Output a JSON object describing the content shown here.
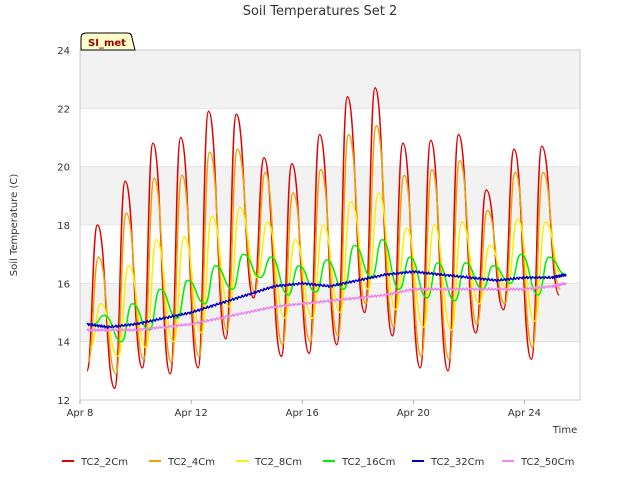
{
  "chart_data": {
    "type": "line",
    "title": "Soil Temperatures Set 2",
    "xlabel": "Time",
    "ylabel": "Soil Temperature (C)",
    "site_label": "SI_met",
    "xlim": [
      "2023-04-08",
      "2023-04-26"
    ],
    "ylim": [
      12,
      24
    ],
    "x_tick_labels": [
      "Apr 8",
      "Apr 12",
      "Apr 16",
      "Apr 20",
      "Apr 24"
    ],
    "y_tick_labels": [
      "12",
      "14",
      "16",
      "18",
      "20",
      "22",
      "24"
    ],
    "grid": true,
    "legend_position": "bottom",
    "series": [
      {
        "name": "TC2_2Cm",
        "color": "#e00000",
        "daily_min": [
          {
            "date": "2023-04-08 06:00",
            "y": 13.0
          },
          {
            "date": "2023-04-09 06:00",
            "y": 12.4
          },
          {
            "date": "2023-04-10 06:00",
            "y": 13.1
          },
          {
            "date": "2023-04-11 06:00",
            "y": 12.9
          },
          {
            "date": "2023-04-12 06:00",
            "y": 13.1
          },
          {
            "date": "2023-04-13 06:00",
            "y": 14.1
          },
          {
            "date": "2023-04-14 06:00",
            "y": 15.5
          },
          {
            "date": "2023-04-15 06:00",
            "y": 13.5
          },
          {
            "date": "2023-04-16 06:00",
            "y": 13.6
          },
          {
            "date": "2023-04-17 06:00",
            "y": 13.9
          },
          {
            "date": "2023-04-18 06:00",
            "y": 15.0
          },
          {
            "date": "2023-04-19 06:00",
            "y": 14.2
          },
          {
            "date": "2023-04-20 06:00",
            "y": 13.1
          },
          {
            "date": "2023-04-21 06:00",
            "y": 13.0
          },
          {
            "date": "2023-04-22 06:00",
            "y": 14.3
          },
          {
            "date": "2023-04-23 06:00",
            "y": 15.1
          },
          {
            "date": "2023-04-24 06:00",
            "y": 13.4
          },
          {
            "date": "2023-04-25 06:00",
            "y": 15.6
          }
        ],
        "daily_max": [
          {
            "date": "2023-04-08 15:00",
            "y": 18.0
          },
          {
            "date": "2023-04-09 15:00",
            "y": 19.5
          },
          {
            "date": "2023-04-10 15:00",
            "y": 20.8
          },
          {
            "date": "2023-04-11 15:00",
            "y": 21.0
          },
          {
            "date": "2023-04-12 15:00",
            "y": 21.9
          },
          {
            "date": "2023-04-13 15:00",
            "y": 21.8
          },
          {
            "date": "2023-04-14 15:00",
            "y": 20.3
          },
          {
            "date": "2023-04-15 15:00",
            "y": 20.1
          },
          {
            "date": "2023-04-16 15:00",
            "y": 21.1
          },
          {
            "date": "2023-04-17 15:00",
            "y": 22.4
          },
          {
            "date": "2023-04-18 15:00",
            "y": 22.7
          },
          {
            "date": "2023-04-19 15:00",
            "y": 20.8
          },
          {
            "date": "2023-04-20 15:00",
            "y": 20.9
          },
          {
            "date": "2023-04-21 15:00",
            "y": 21.1
          },
          {
            "date": "2023-04-22 15:00",
            "y": 19.2
          },
          {
            "date": "2023-04-23 15:00",
            "y": 20.6
          },
          {
            "date": "2023-04-24 15:00",
            "y": 20.7
          }
        ]
      },
      {
        "name": "TC2_4Cm",
        "color": "#f0a000",
        "daily_min": [
          {
            "date": "2023-04-08 07:00",
            "y": 13.3
          },
          {
            "date": "2023-04-09 07:00",
            "y": 12.9
          },
          {
            "date": "2023-04-10 07:00",
            "y": 13.4
          },
          {
            "date": "2023-04-11 07:00",
            "y": 13.3
          },
          {
            "date": "2023-04-12 07:00",
            "y": 13.5
          },
          {
            "date": "2023-04-13 07:00",
            "y": 14.4
          },
          {
            "date": "2023-04-14 07:00",
            "y": 15.7
          },
          {
            "date": "2023-04-15 07:00",
            "y": 13.9
          },
          {
            "date": "2023-04-16 07:00",
            "y": 14.0
          },
          {
            "date": "2023-04-17 07:00",
            "y": 14.2
          },
          {
            "date": "2023-04-18 07:00",
            "y": 15.3
          },
          {
            "date": "2023-04-19 07:00",
            "y": 14.5
          },
          {
            "date": "2023-04-20 07:00",
            "y": 13.5
          },
          {
            "date": "2023-04-21 07:00",
            "y": 13.4
          },
          {
            "date": "2023-04-22 07:00",
            "y": 14.6
          },
          {
            "date": "2023-04-23 07:00",
            "y": 15.3
          },
          {
            "date": "2023-04-24 07:00",
            "y": 13.8
          },
          {
            "date": "2023-04-25 07:00",
            "y": 15.8
          }
        ],
        "daily_max": [
          {
            "date": "2023-04-08 16:00",
            "y": 16.9
          },
          {
            "date": "2023-04-09 16:00",
            "y": 18.4
          },
          {
            "date": "2023-04-10 16:00",
            "y": 19.6
          },
          {
            "date": "2023-04-11 16:00",
            "y": 19.7
          },
          {
            "date": "2023-04-12 16:00",
            "y": 20.5
          },
          {
            "date": "2023-04-13 16:00",
            "y": 20.6
          },
          {
            "date": "2023-04-14 16:00",
            "y": 19.8
          },
          {
            "date": "2023-04-15 16:00",
            "y": 19.1
          },
          {
            "date": "2023-04-16 16:00",
            "y": 19.9
          },
          {
            "date": "2023-04-17 16:00",
            "y": 21.1
          },
          {
            "date": "2023-04-18 16:00",
            "y": 21.4
          },
          {
            "date": "2023-04-19 16:00",
            "y": 19.7
          },
          {
            "date": "2023-04-20 16:00",
            "y": 19.9
          },
          {
            "date": "2023-04-21 16:00",
            "y": 20.2
          },
          {
            "date": "2023-04-22 16:00",
            "y": 18.5
          },
          {
            "date": "2023-04-23 16:00",
            "y": 19.8
          },
          {
            "date": "2023-04-24 16:00",
            "y": 19.8
          }
        ]
      },
      {
        "name": "TC2_8Cm",
        "color": "#ffee00",
        "daily_min": [
          {
            "date": "2023-04-08 09:00",
            "y": 13.8
          },
          {
            "date": "2023-04-09 09:00",
            "y": 13.5
          },
          {
            "date": "2023-04-10 09:00",
            "y": 13.8
          },
          {
            "date": "2023-04-11 09:00",
            "y": 14.0
          },
          {
            "date": "2023-04-12 09:00",
            "y": 14.3
          },
          {
            "date": "2023-04-13 09:00",
            "y": 15.2
          },
          {
            "date": "2023-04-14 09:00",
            "y": 16.2
          },
          {
            "date": "2023-04-15 09:00",
            "y": 14.8
          },
          {
            "date": "2023-04-16 09:00",
            "y": 14.8
          },
          {
            "date": "2023-04-17 09:00",
            "y": 15.0
          },
          {
            "date": "2023-04-18 09:00",
            "y": 15.8
          },
          {
            "date": "2023-04-19 09:00",
            "y": 15.1
          },
          {
            "date": "2023-04-20 09:00",
            "y": 14.5
          },
          {
            "date": "2023-04-21 09:00",
            "y": 14.4
          },
          {
            "date": "2023-04-22 09:00",
            "y": 15.3
          },
          {
            "date": "2023-04-23 09:00",
            "y": 15.8
          },
          {
            "date": "2023-04-24 09:00",
            "y": 14.7
          },
          {
            "date": "2023-04-25 09:00",
            "y": 16.2
          }
        ],
        "daily_max": [
          {
            "date": "2023-04-08 18:00",
            "y": 15.3
          },
          {
            "date": "2023-04-09 18:00",
            "y": 16.6
          },
          {
            "date": "2023-04-10 18:00",
            "y": 17.5
          },
          {
            "date": "2023-04-11 18:00",
            "y": 17.6
          },
          {
            "date": "2023-04-12 18:00",
            "y": 18.3
          },
          {
            "date": "2023-04-13 18:00",
            "y": 18.6
          },
          {
            "date": "2023-04-14 18:00",
            "y": 18.1
          },
          {
            "date": "2023-04-15 18:00",
            "y": 17.5
          },
          {
            "date": "2023-04-16 18:00",
            "y": 18.0
          },
          {
            "date": "2023-04-17 18:00",
            "y": 18.8
          },
          {
            "date": "2023-04-18 18:00",
            "y": 19.1
          },
          {
            "date": "2023-04-19 18:00",
            "y": 17.9
          },
          {
            "date": "2023-04-20 18:00",
            "y": 18.0
          },
          {
            "date": "2023-04-21 18:00",
            "y": 18.1
          },
          {
            "date": "2023-04-22 18:00",
            "y": 17.3
          },
          {
            "date": "2023-04-23 18:00",
            "y": 18.2
          },
          {
            "date": "2023-04-24 18:00",
            "y": 18.1
          }
        ]
      },
      {
        "name": "TC2_16Cm",
        "color": "#00ee00",
        "daily_min": [
          {
            "date": "2023-04-08 12:00",
            "y": 14.6
          },
          {
            "date": "2023-04-09 12:00",
            "y": 14.0
          },
          {
            "date": "2023-04-10 12:00",
            "y": 14.4
          },
          {
            "date": "2023-04-11 12:00",
            "y": 14.8
          },
          {
            "date": "2023-04-12 12:00",
            "y": 15.3
          },
          {
            "date": "2023-04-13 12:00",
            "y": 15.8
          },
          {
            "date": "2023-04-14 12:00",
            "y": 16.2
          },
          {
            "date": "2023-04-15 12:00",
            "y": 15.6
          },
          {
            "date": "2023-04-16 12:00",
            "y": 15.7
          },
          {
            "date": "2023-04-17 12:00",
            "y": 15.8
          },
          {
            "date": "2023-04-18 12:00",
            "y": 16.2
          },
          {
            "date": "2023-04-19 12:00",
            "y": 15.8
          },
          {
            "date": "2023-04-20 12:00",
            "y": 15.5
          },
          {
            "date": "2023-04-21 12:00",
            "y": 15.4
          },
          {
            "date": "2023-04-22 12:00",
            "y": 15.8
          },
          {
            "date": "2023-04-23 12:00",
            "y": 16.0
          },
          {
            "date": "2023-04-24 12:00",
            "y": 15.6
          },
          {
            "date": "2023-04-25 12:00",
            "y": 16.3
          }
        ],
        "daily_max": [
          {
            "date": "2023-04-08 21:00",
            "y": 14.9
          },
          {
            "date": "2023-04-09 21:00",
            "y": 15.3
          },
          {
            "date": "2023-04-10 21:00",
            "y": 15.8
          },
          {
            "date": "2023-04-11 21:00",
            "y": 16.1
          },
          {
            "date": "2023-04-12 21:00",
            "y": 16.6
          },
          {
            "date": "2023-04-13 21:00",
            "y": 17.0
          },
          {
            "date": "2023-04-14 21:00",
            "y": 16.9
          },
          {
            "date": "2023-04-15 21:00",
            "y": 16.6
          },
          {
            "date": "2023-04-16 21:00",
            "y": 16.8
          },
          {
            "date": "2023-04-17 21:00",
            "y": 17.3
          },
          {
            "date": "2023-04-18 21:00",
            "y": 17.5
          },
          {
            "date": "2023-04-19 21:00",
            "y": 16.9
          },
          {
            "date": "2023-04-20 21:00",
            "y": 16.7
          },
          {
            "date": "2023-04-21 21:00",
            "y": 16.7
          },
          {
            "date": "2023-04-22 21:00",
            "y": 16.6
          },
          {
            "date": "2023-04-23 21:00",
            "y": 17.0
          },
          {
            "date": "2023-04-24 21:00",
            "y": 16.9
          }
        ]
      },
      {
        "name": "TC2_32Cm",
        "color": "#0000cc",
        "points": [
          {
            "date": "2023-04-08 06:00",
            "y": 14.6
          },
          {
            "date": "2023-04-09 00:00",
            "y": 14.5
          },
          {
            "date": "2023-04-10 00:00",
            "y": 14.6
          },
          {
            "date": "2023-04-11 00:00",
            "y": 14.8
          },
          {
            "date": "2023-04-12 00:00",
            "y": 15.0
          },
          {
            "date": "2023-04-13 00:00",
            "y": 15.3
          },
          {
            "date": "2023-04-14 00:00",
            "y": 15.6
          },
          {
            "date": "2023-04-15 00:00",
            "y": 15.9
          },
          {
            "date": "2023-04-16 00:00",
            "y": 16.0
          },
          {
            "date": "2023-04-17 00:00",
            "y": 15.9
          },
          {
            "date": "2023-04-18 00:00",
            "y": 16.1
          },
          {
            "date": "2023-04-19 00:00",
            "y": 16.3
          },
          {
            "date": "2023-04-20 00:00",
            "y": 16.4
          },
          {
            "date": "2023-04-21 00:00",
            "y": 16.3
          },
          {
            "date": "2023-04-22 00:00",
            "y": 16.2
          },
          {
            "date": "2023-04-23 00:00",
            "y": 16.1
          },
          {
            "date": "2023-04-24 00:00",
            "y": 16.2
          },
          {
            "date": "2023-04-25 00:00",
            "y": 16.2
          },
          {
            "date": "2023-04-25 12:00",
            "y": 16.3
          }
        ]
      },
      {
        "name": "TC2_50Cm",
        "color": "#ee88ee",
        "points": [
          {
            "date": "2023-04-08 06:00",
            "y": 14.4
          },
          {
            "date": "2023-04-09 00:00",
            "y": 14.4
          },
          {
            "date": "2023-04-10 00:00",
            "y": 14.4
          },
          {
            "date": "2023-04-11 00:00",
            "y": 14.5
          },
          {
            "date": "2023-04-12 00:00",
            "y": 14.6
          },
          {
            "date": "2023-04-13 00:00",
            "y": 14.8
          },
          {
            "date": "2023-04-14 00:00",
            "y": 15.0
          },
          {
            "date": "2023-04-15 00:00",
            "y": 15.2
          },
          {
            "date": "2023-04-16 00:00",
            "y": 15.3
          },
          {
            "date": "2023-04-17 00:00",
            "y": 15.4
          },
          {
            "date": "2023-04-18 00:00",
            "y": 15.5
          },
          {
            "date": "2023-04-19 00:00",
            "y": 15.6
          },
          {
            "date": "2023-04-20 00:00",
            "y": 15.8
          },
          {
            "date": "2023-04-21 00:00",
            "y": 15.8
          },
          {
            "date": "2023-04-22 00:00",
            "y": 15.8
          },
          {
            "date": "2023-04-23 00:00",
            "y": 15.8
          },
          {
            "date": "2023-04-24 00:00",
            "y": 15.8
          },
          {
            "date": "2023-04-25 00:00",
            "y": 15.9
          },
          {
            "date": "2023-04-25 12:00",
            "y": 16.0
          }
        ]
      }
    ]
  }
}
